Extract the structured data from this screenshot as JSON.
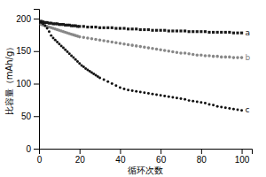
{
  "chart_data": {
    "type": "scatter",
    "title": "",
    "xlabel": "循环次数",
    "ylabel": "比容量（mAh/g）",
    "xlim": [
      0,
      105
    ],
    "ylim": [
      0,
      215
    ],
    "xticks": [
      0,
      20,
      40,
      60,
      80,
      100
    ],
    "yticks": [
      0,
      50,
      100,
      150,
      200
    ],
    "grid": false,
    "series": [
      {
        "name": "a",
        "color": "#1a1a1a",
        "marker": "square",
        "x": [
          1,
          2,
          3,
          4,
          5,
          6,
          7,
          8,
          9,
          10,
          11,
          12,
          13,
          14,
          15,
          16,
          17,
          18,
          19,
          20,
          22,
          24,
          26,
          28,
          30,
          32,
          34,
          36,
          38,
          40,
          42,
          44,
          46,
          48,
          50,
          52,
          54,
          56,
          58,
          60,
          62,
          64,
          66,
          68,
          70,
          72,
          74,
          76,
          78,
          80,
          82,
          84,
          86,
          88,
          90,
          92,
          94,
          96,
          98,
          100
        ],
        "values": [
          196,
          195,
          194,
          194,
          193,
          193,
          192,
          192,
          192,
          191,
          191,
          191,
          190,
          190,
          190,
          189,
          189,
          189,
          188,
          188,
          188,
          187,
          187,
          187,
          186,
          186,
          186,
          186,
          185,
          185,
          185,
          184,
          184,
          184,
          183,
          183,
          183,
          182,
          182,
          182,
          182,
          181,
          181,
          181,
          181,
          181,
          180,
          180,
          180,
          180,
          180,
          179,
          179,
          179,
          179,
          179,
          179,
          178,
          178,
          178
        ]
      },
      {
        "name": "b",
        "color": "#888888",
        "marker": "circle",
        "x": [
          1,
          2,
          3,
          4,
          5,
          6,
          7,
          8,
          9,
          10,
          11,
          12,
          13,
          14,
          15,
          16,
          17,
          18,
          19,
          20,
          22,
          24,
          26,
          28,
          30,
          32,
          34,
          36,
          38,
          40,
          42,
          44,
          46,
          48,
          50,
          52,
          54,
          56,
          58,
          60,
          62,
          64,
          66,
          68,
          70,
          72,
          74,
          76,
          78,
          80,
          82,
          84,
          86,
          88,
          90,
          92,
          94,
          96,
          98,
          100
        ],
        "values": [
          191,
          190,
          189,
          188,
          187,
          186,
          185,
          184,
          183,
          182,
          181,
          180,
          179,
          178,
          177,
          176,
          175,
          174,
          173,
          172,
          171,
          170,
          169,
          168,
          167,
          166,
          165,
          164,
          163,
          162,
          161,
          160,
          159,
          158,
          157,
          156,
          155,
          154,
          153,
          152,
          151,
          150,
          149,
          148,
          147,
          147,
          146,
          145,
          144,
          144,
          143,
          143,
          142,
          142,
          141,
          141,
          141,
          140,
          140,
          140
        ]
      },
      {
        "name": "c",
        "color": "#111111",
        "marker": "point",
        "x": [
          1,
          2,
          3,
          4,
          5,
          6,
          7,
          8,
          9,
          10,
          11,
          12,
          13,
          14,
          15,
          16,
          17,
          18,
          19,
          20,
          21,
          22,
          23,
          24,
          25,
          26,
          27,
          28,
          29,
          30,
          32,
          34,
          36,
          38,
          40,
          42,
          44,
          46,
          48,
          50,
          52,
          54,
          56,
          58,
          60,
          62,
          64,
          66,
          68,
          70,
          72,
          74,
          76,
          78,
          80,
          82,
          84,
          86,
          88,
          90,
          92,
          94,
          96,
          98,
          100
        ],
        "values": [
          194,
          192,
          189,
          185,
          180,
          174,
          170,
          167,
          164,
          161,
          158,
          155,
          152,
          149,
          146,
          143,
          140,
          137,
          134,
          131,
          128,
          126,
          123,
          121,
          119,
          117,
          115,
          113,
          111,
          109,
          106,
          103,
          100,
          97,
          94,
          92,
          90,
          89,
          88,
          87,
          86,
          85,
          84,
          83,
          82,
          81,
          80,
          79,
          78,
          77,
          76,
          74,
          73,
          72,
          71,
          70,
          68,
          67,
          65,
          64,
          63,
          62,
          61,
          60,
          59
        ]
      }
    ]
  }
}
